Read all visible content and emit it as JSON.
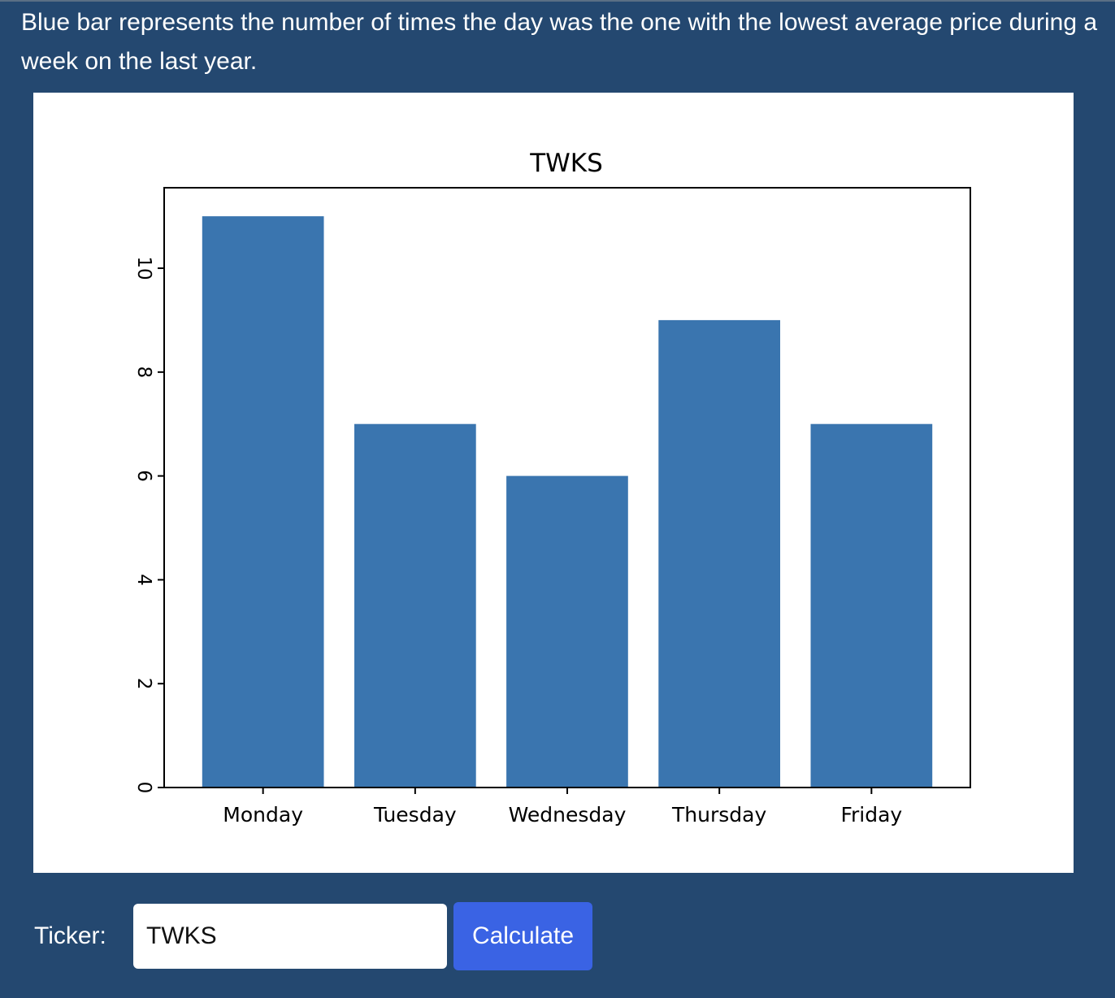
{
  "description": "Blue bar represents the number of times the day was the one with the lowest average price during a week on the last year.",
  "form": {
    "ticker_label": "Ticker:",
    "ticker_value": "TWKS",
    "calculate_label": "Calculate"
  },
  "colors": {
    "page_background": "#244870",
    "bar": "#3a75af",
    "button": "#3a63e4"
  },
  "chart_data": {
    "type": "bar",
    "title": "TWKS",
    "xlabel": "",
    "ylabel": "",
    "categories": [
      "Monday",
      "Tuesday",
      "Wednesday",
      "Thursday",
      "Friday"
    ],
    "values": [
      11,
      7,
      6,
      9,
      7
    ],
    "ylim": [
      0,
      11.55
    ],
    "yticks": [
      0,
      2,
      4,
      6,
      8,
      10
    ],
    "y_tick_labels_rotated": true,
    "grid": false,
    "legend": "none"
  }
}
